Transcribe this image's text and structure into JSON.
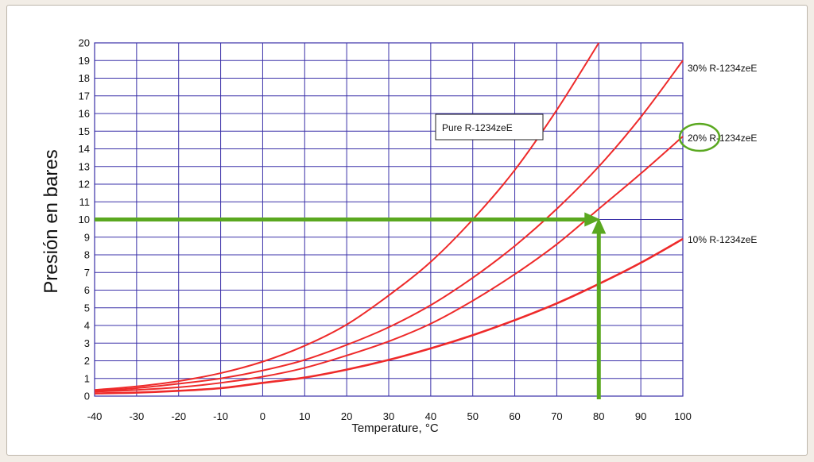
{
  "chart_data": {
    "type": "line",
    "xlabel": "Temperature, °C",
    "ylabel": "Presión en bares",
    "xlim": [
      -40,
      100
    ],
    "ylim": [
      0,
      20
    ],
    "x_ticks": [
      -40,
      -30,
      -20,
      -10,
      0,
      10,
      20,
      30,
      40,
      50,
      60,
      70,
      80,
      90,
      100
    ],
    "y_ticks": [
      0,
      1,
      2,
      3,
      4,
      5,
      6,
      7,
      8,
      9,
      10,
      11,
      12,
      13,
      14,
      15,
      16,
      17,
      18,
      19,
      20
    ],
    "grid": true,
    "grid_color": "#3a30a8",
    "line_color": "#ee2a2a",
    "annotation_color": "#5aa820",
    "series": [
      {
        "name": "Pure R-1234zeE",
        "x": [
          -40,
          -30,
          -20,
          -10,
          0,
          10,
          20,
          30,
          40,
          50,
          60,
          70,
          80
        ],
        "y": [
          0.35,
          0.55,
          0.85,
          1.3,
          1.95,
          2.85,
          4.05,
          5.7,
          7.6,
          10.0,
          12.8,
          16.2,
          20.0
        ]
      },
      {
        "name": "30% R-1234zeE",
        "x": [
          -40,
          -30,
          -20,
          -10,
          0,
          10,
          20,
          30,
          40,
          50,
          60,
          70,
          80,
          90,
          100
        ],
        "y": [
          0.3,
          0.45,
          0.7,
          1.0,
          1.45,
          2.05,
          2.9,
          3.9,
          5.15,
          6.7,
          8.5,
          10.6,
          13.0,
          15.8,
          19.0
        ]
      },
      {
        "name": "20% R-1234zeE",
        "x": [
          -40,
          -30,
          -20,
          -10,
          0,
          10,
          20,
          30,
          40,
          50,
          60,
          70,
          80,
          90,
          100
        ],
        "y": [
          0.25,
          0.35,
          0.5,
          0.75,
          1.1,
          1.6,
          2.3,
          3.1,
          4.1,
          5.4,
          6.9,
          8.6,
          10.6,
          12.6,
          14.7
        ]
      },
      {
        "name": "10% R-1234zeE",
        "x": [
          -40,
          -30,
          -20,
          -10,
          0,
          10,
          20,
          30,
          40,
          50,
          60,
          70,
          80,
          90,
          100
        ],
        "y": [
          0.15,
          0.2,
          0.3,
          0.45,
          0.75,
          1.05,
          1.5,
          2.05,
          2.7,
          3.45,
          4.3,
          5.25,
          6.35,
          7.55,
          8.9
        ]
      }
    ],
    "labels": {
      "pure": "Pure R-1234zeE",
      "p30": "30% R-1234zeE",
      "p20": "20% R-1234zeE",
      "p10": "10% R-1234zeE"
    },
    "annotations": {
      "arrow_horizontal": {
        "from_x": -40,
        "to_x": 80,
        "y": 10
      },
      "arrow_vertical": {
        "x": 80,
        "from_y": 0,
        "to_y": 10
      },
      "circled_label": "20%"
    }
  }
}
